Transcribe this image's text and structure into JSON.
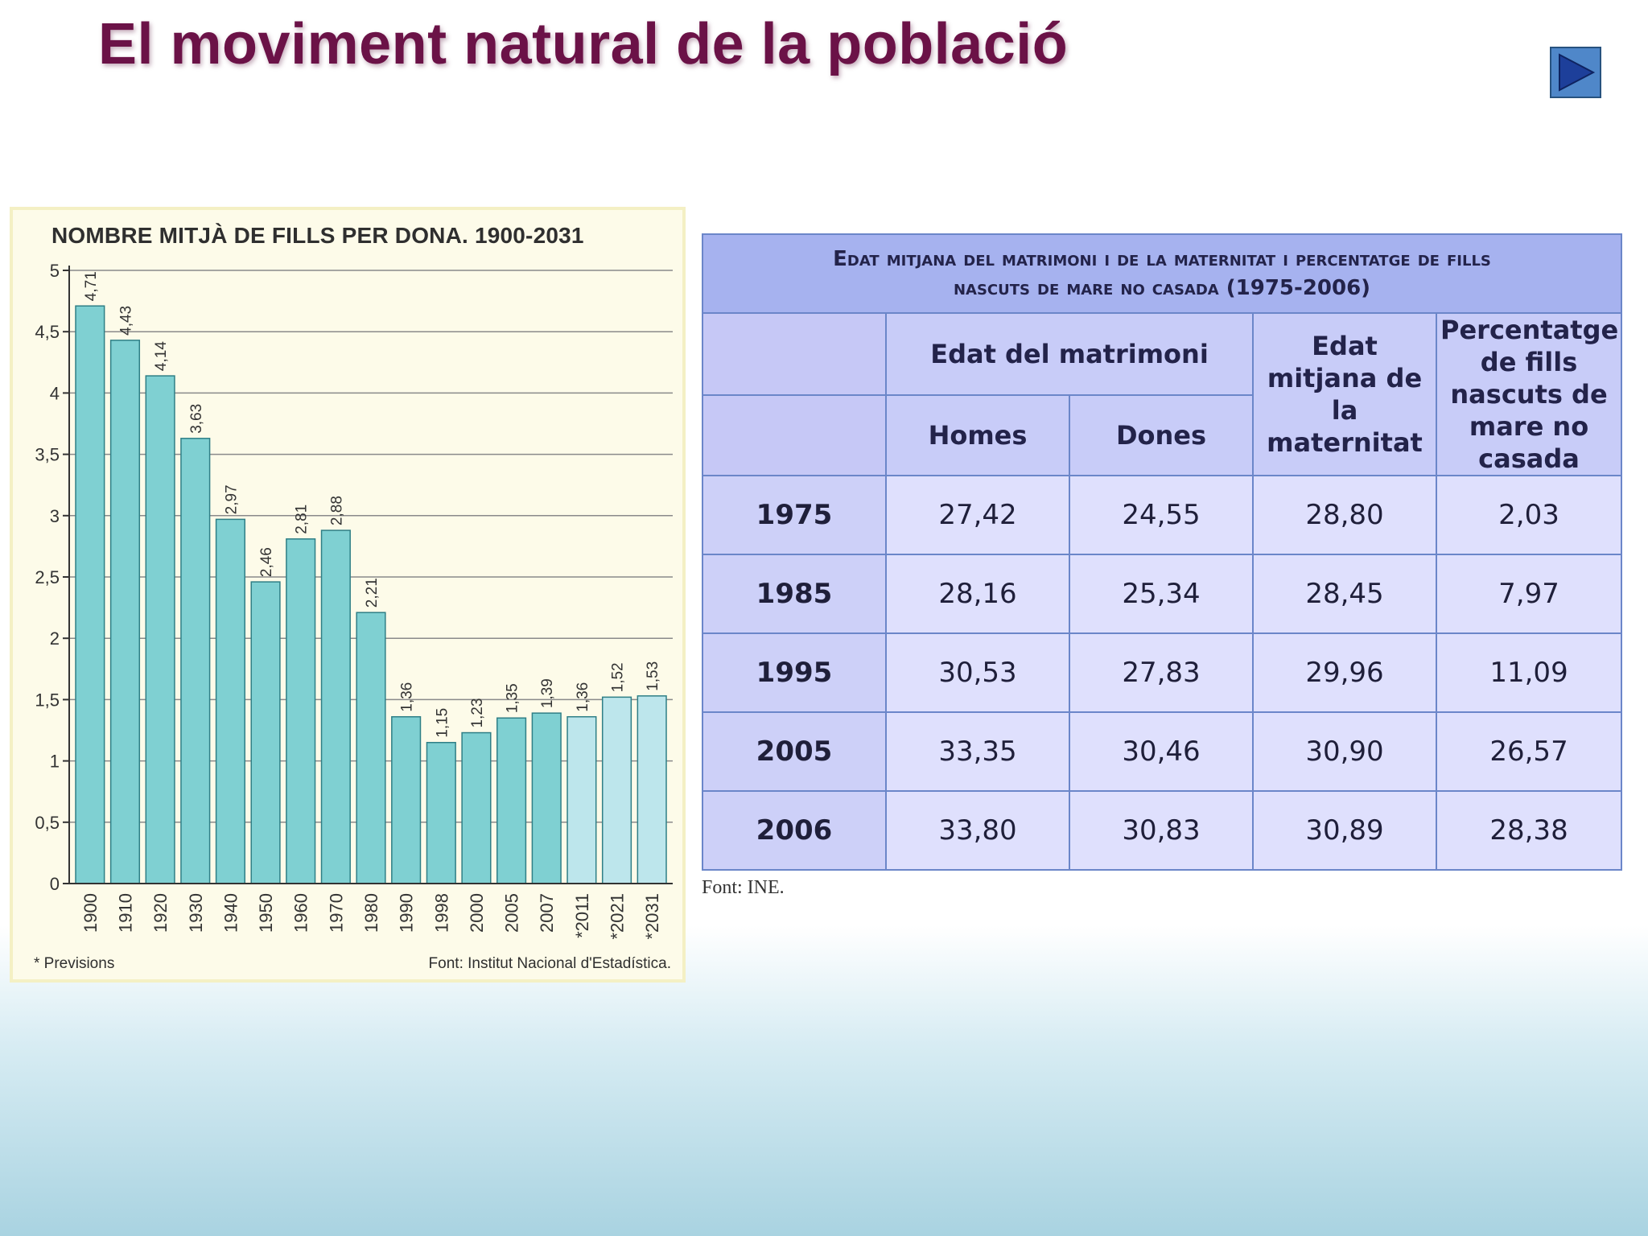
{
  "slide": {
    "title": "El moviment natural de la població"
  },
  "nav": {
    "next_icon": "play-triangle-icon"
  },
  "chart_data": {
    "type": "bar",
    "title": "NOMBRE MITJÀ DE FILLS PER DONA. 1900-2031",
    "xlabel": "",
    "ylabel": "",
    "ylim": [
      0,
      5
    ],
    "yticks": [
      0,
      0.5,
      1,
      1.5,
      2,
      2.5,
      3,
      3.5,
      4,
      4.5,
      5
    ],
    "ytick_labels": [
      "0",
      "0,5",
      "1",
      "1,5",
      "2",
      "2,5",
      "3",
      "3,5",
      "4",
      "4,5",
      "5"
    ],
    "categories": [
      "1900",
      "1910",
      "1920",
      "1930",
      "1940",
      "1950",
      "1960",
      "1970",
      "1980",
      "1990",
      "1998",
      "2000",
      "2005",
      "2007",
      "*2011",
      "*2021",
      "*2031"
    ],
    "values": [
      4.71,
      4.43,
      4.14,
      3.63,
      2.97,
      2.46,
      2.81,
      2.88,
      2.21,
      1.36,
      1.15,
      1.23,
      1.35,
      1.39,
      1.36,
      1.52,
      1.53
    ],
    "value_labels": [
      "4,71",
      "4,43",
      "4,14",
      "3,63",
      "2,97",
      "2,46",
      "2,81",
      "2,88",
      "2,21",
      "1,36",
      "1,15",
      "1,23",
      "1,35",
      "1,39",
      "1,36",
      "1,52",
      "1,53"
    ],
    "grid": true,
    "colors": {
      "bar": "#7fd0d2",
      "bar_forecast": "#bde6ec",
      "bar_edge": "#2f7f86"
    },
    "note": "* Previsions",
    "source": "Font: Institut Nacional d'Estadística."
  },
  "table": {
    "caption_line1": "Edat mitjana del matrimoni i de la maternitat i percentatge de fills",
    "caption_line2_text": "nascuts de mare no casada",
    "caption_line2_years": "(1975-2006)",
    "group_header": "Edat del matrimoni",
    "col_homes": "Homes",
    "col_dones": "Dones",
    "col_maternitat": "Edat mitjana de la maternitat",
    "col_percentatge": "Percentatge de fills nascuts de mare no casada",
    "rows": [
      {
        "year": "1975",
        "homes": "27,42",
        "dones": "24,55",
        "maternitat": "28,80",
        "percentatge": "2,03"
      },
      {
        "year": "1985",
        "homes": "28,16",
        "dones": "25,34",
        "maternitat": "28,45",
        "percentatge": "7,97"
      },
      {
        "year": "1995",
        "homes": "30,53",
        "dones": "27,83",
        "maternitat": "29,96",
        "percentatge": "11,09"
      },
      {
        "year": "2005",
        "homes": "33,35",
        "dones": "30,46",
        "maternitat": "30,90",
        "percentatge": "26,57"
      },
      {
        "year": "2006",
        "homes": "33,80",
        "dones": "30,83",
        "maternitat": "30,89",
        "percentatge": "28,38"
      }
    ],
    "source": "Font: INE."
  }
}
